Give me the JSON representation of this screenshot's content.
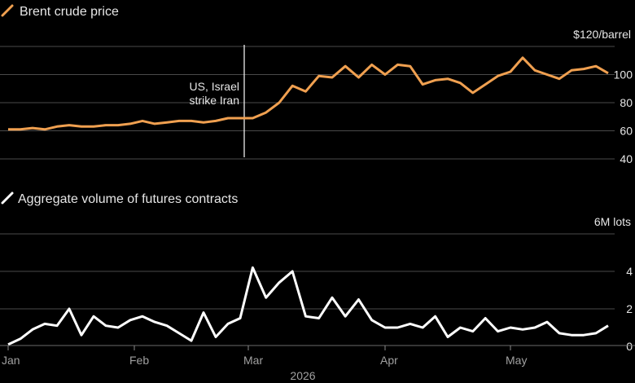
{
  "chart_data": [
    {
      "type": "line",
      "title": "Brent crude price",
      "unit_label": "$120/barrel",
      "color": "#f0a050",
      "ylim": [
        40,
        120
      ],
      "y_ticks": [
        40,
        60,
        80,
        100
      ],
      "grid": true,
      "annotation": {
        "lines": [
          "US, Israel",
          "strike Iran"
        ],
        "x": "2026-02-28"
      },
      "series": [
        {
          "x": [
            "2026-01-01",
            "2026-01-04",
            "2026-01-07",
            "2026-01-10",
            "2026-01-13",
            "2026-01-16",
            "2026-01-19",
            "2026-01-22",
            "2026-01-25",
            "2026-01-28",
            "2026-01-31",
            "2026-02-03",
            "2026-02-06",
            "2026-02-09",
            "2026-02-12",
            "2026-02-15",
            "2026-02-18",
            "2026-02-21",
            "2026-02-24",
            "2026-02-27",
            "2026-03-02",
            "2026-03-05",
            "2026-03-08",
            "2026-03-11",
            "2026-03-14",
            "2026-03-17",
            "2026-03-20",
            "2026-03-23",
            "2026-03-26",
            "2026-03-29",
            "2026-04-01",
            "2026-04-04",
            "2026-04-07",
            "2026-04-10",
            "2026-04-13",
            "2026-04-16",
            "2026-04-19",
            "2026-04-22",
            "2026-04-25",
            "2026-04-28",
            "2026-05-01",
            "2026-05-04",
            "2026-05-07",
            "2026-05-10",
            "2026-05-13",
            "2026-05-16",
            "2026-05-19",
            "2026-05-22",
            "2026-05-25"
          ],
          "y": [
            61,
            61,
            62,
            61,
            63,
            64,
            63,
            63,
            64,
            64,
            65,
            67,
            65,
            66,
            67,
            67,
            66,
            67,
            69,
            69,
            69,
            73,
            80,
            92,
            88,
            99,
            98,
            106,
            98,
            107,
            100,
            107,
            106,
            93,
            96,
            97,
            94,
            87,
            93,
            99,
            102,
            112,
            103,
            100,
            97,
            103,
            104,
            106,
            101
          ]
        }
      ]
    },
    {
      "type": "line",
      "title": "Aggregate volume of futures contracts",
      "unit_label": "6M lots",
      "color": "#ffffff",
      "ylim": [
        0,
        6
      ],
      "y_ticks": [
        0,
        2,
        4
      ],
      "grid": true,
      "x_ticks": [
        "Jan",
        "Feb",
        "Mar",
        "Apr",
        "May"
      ],
      "x_label": "2026",
      "series": [
        {
          "x": [
            "2026-01-01",
            "2026-01-04",
            "2026-01-07",
            "2026-01-10",
            "2026-01-13",
            "2026-01-16",
            "2026-01-19",
            "2026-01-22",
            "2026-01-25",
            "2026-01-28",
            "2026-01-31",
            "2026-02-03",
            "2026-02-06",
            "2026-02-09",
            "2026-02-12",
            "2026-02-15",
            "2026-02-18",
            "2026-02-21",
            "2026-02-24",
            "2026-02-27",
            "2026-03-02",
            "2026-03-05",
            "2026-03-08",
            "2026-03-11",
            "2026-03-14",
            "2026-03-17",
            "2026-03-20",
            "2026-03-23",
            "2026-03-26",
            "2026-03-29",
            "2026-04-01",
            "2026-04-04",
            "2026-04-07",
            "2026-04-10",
            "2026-04-13",
            "2026-04-16",
            "2026-04-19",
            "2026-04-22",
            "2026-04-25",
            "2026-04-28",
            "2026-05-01",
            "2026-05-04",
            "2026-05-07",
            "2026-05-10",
            "2026-05-13",
            "2026-05-16",
            "2026-05-19",
            "2026-05-22",
            "2026-05-25"
          ],
          "y": [
            0.1,
            0.4,
            0.9,
            1.2,
            1.1,
            2.0,
            0.6,
            1.6,
            1.1,
            1.0,
            1.4,
            1.6,
            1.3,
            1.1,
            0.7,
            0.3,
            1.8,
            0.5,
            1.2,
            1.5,
            4.2,
            2.6,
            3.4,
            4.0,
            1.6,
            1.5,
            2.6,
            1.6,
            2.5,
            1.4,
            1.0,
            1.0,
            1.2,
            1.0,
            1.6,
            0.5,
            1.0,
            0.8,
            1.5,
            0.8,
            1.0,
            0.9,
            1.0,
            1.3,
            0.7,
            0.6,
            0.6,
            0.7,
            1.1
          ]
        }
      ]
    }
  ]
}
